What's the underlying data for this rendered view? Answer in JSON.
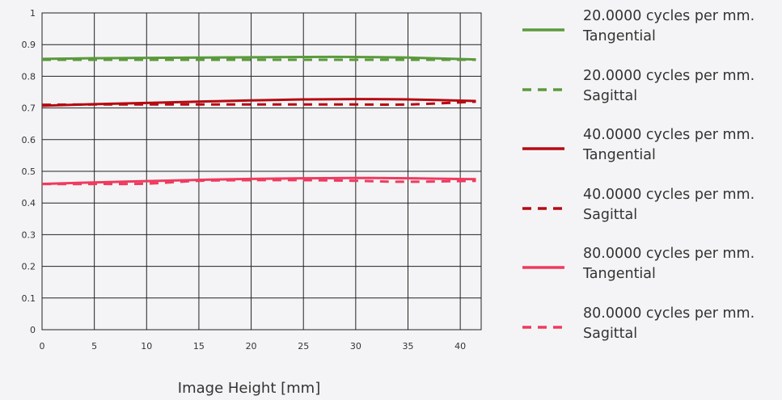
{
  "chart_data": {
    "type": "line",
    "title": "",
    "xlabel": "Image Height [mm]",
    "ylabel": "",
    "xlim": [
      0,
      42
    ],
    "ylim": [
      0,
      1
    ],
    "xticks": [
      0,
      5,
      10,
      15,
      20,
      25,
      30,
      35,
      40
    ],
    "xtick_labels": [
      "0",
      "5",
      "10",
      "15",
      "20",
      "25",
      "30",
      "35",
      "40"
    ],
    "yticks": [
      0,
      0.1,
      0.2,
      0.3,
      0.4,
      0.5,
      0.6,
      0.7,
      0.8,
      0.9,
      1
    ],
    "ytick_labels": [
      "0",
      "0.1",
      "0.2",
      "0.3",
      "0.4",
      "0.5",
      "0.6",
      "0.7",
      "0.8",
      "0.9",
      "1"
    ],
    "grid": true,
    "legend_position": "right",
    "x": [
      0,
      5,
      10,
      15,
      20,
      25,
      30,
      35,
      41.5
    ],
    "series": [
      {
        "name": "20.0000 cycles per mm.",
        "name2": "Tangential",
        "color": "#5a9a3c",
        "dash": false,
        "values": [
          0.855,
          0.857,
          0.858,
          0.859,
          0.86,
          0.861,
          0.861,
          0.859,
          0.853
        ]
      },
      {
        "name": "20.0000 cycles per mm.",
        "name2": "Sagittal",
        "color": "#5a9a3c",
        "dash": true,
        "values": [
          0.852,
          0.852,
          0.852,
          0.852,
          0.852,
          0.852,
          0.852,
          0.852,
          0.852
        ]
      },
      {
        "name": "40.0000 cycles per mm.",
        "name2": "Tangential",
        "color": "#b50a12",
        "dash": false,
        "values": [
          0.707,
          0.712,
          0.716,
          0.72,
          0.724,
          0.727,
          0.728,
          0.727,
          0.722
        ]
      },
      {
        "name": "40.0000 cycles per mm.",
        "name2": "Sagittal",
        "color": "#b50a12",
        "dash": true,
        "values": [
          0.71,
          0.711,
          0.711,
          0.711,
          0.711,
          0.711,
          0.711,
          0.711,
          0.72
        ]
      },
      {
        "name": "80.0000 cycles per mm.",
        "name2": "Tangential",
        "color": "#f03a5f",
        "dash": false,
        "values": [
          0.46,
          0.465,
          0.469,
          0.473,
          0.476,
          0.478,
          0.479,
          0.478,
          0.475
        ]
      },
      {
        "name": "80.0000 cycles per mm.",
        "name2": "Sagittal",
        "color": "#f03a5f",
        "dash": true,
        "values": [
          0.46,
          0.46,
          0.461,
          0.47,
          0.472,
          0.472,
          0.47,
          0.467,
          0.47
        ]
      }
    ]
  }
}
